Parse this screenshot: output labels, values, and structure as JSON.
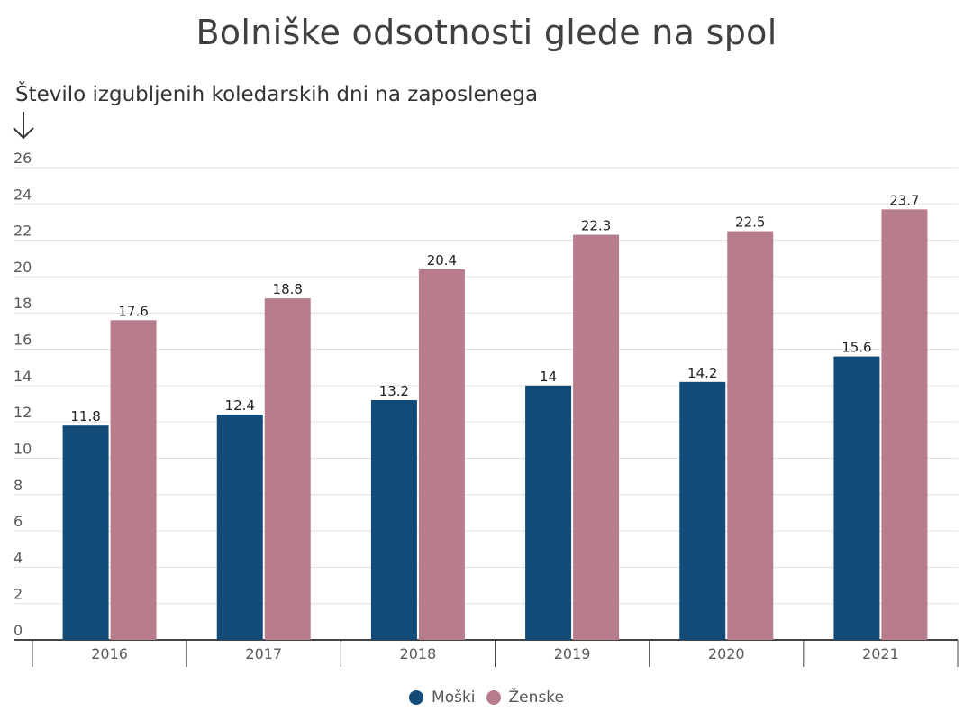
{
  "chart_data": {
    "type": "bar",
    "title": "Bolniške odsotnosti glede na spol",
    "xlabel": "",
    "ylabel": "Število izgubljenih koledarskih dni na zaposlenega",
    "ylim": [
      0,
      26
    ],
    "yticks": [
      0,
      2,
      4,
      6,
      8,
      10,
      12,
      14,
      16,
      18,
      20,
      22,
      24,
      26
    ],
    "grid": true,
    "legend_position": "bottom-center",
    "categories": [
      "2016",
      "2017",
      "2018",
      "2019",
      "2020",
      "2021"
    ],
    "series": [
      {
        "name": "Moški",
        "color": "#134b78",
        "values": [
          11.8,
          12.4,
          13.2,
          14,
          14.2,
          15.6
        ]
      },
      {
        "name": "Ženske",
        "color": "#b87d8d",
        "values": [
          17.6,
          18.8,
          20.4,
          22.3,
          22.5,
          23.7
        ]
      }
    ],
    "data_labels": [
      [
        "11.8",
        "12.4",
        "13.2",
        "14",
        "14.2",
        "15.6"
      ],
      [
        "17.6",
        "18.8",
        "20.4",
        "22.3",
        "22.5",
        "23.7"
      ]
    ]
  },
  "y_arrow_icon": "arrow-down-icon"
}
